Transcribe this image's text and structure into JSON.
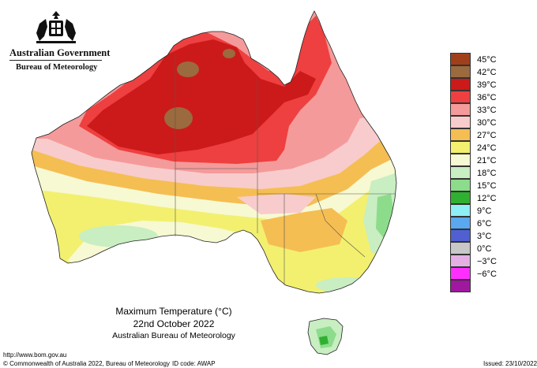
{
  "header": {
    "gov_name": "Australian Government",
    "bureau_name": "Bureau of Meteorology"
  },
  "title": {
    "line1": "Maximum Temperature (°C)",
    "line2": "22nd October 2022",
    "line3": "Australian Bureau of Meteorology"
  },
  "footer": {
    "url": "http://www.bom.gov.au",
    "copyright": "© Commonwealth of Australia 2022, Bureau of Meteorology",
    "id_code": "ID code: AWAP",
    "issued": "Issued: 23/10/2022"
  },
  "legend": [
    {
      "label": "45°C",
      "color": "#a0401a"
    },
    {
      "label": "42°C",
      "color": "#9b6a3e"
    },
    {
      "label": "39°C",
      "color": "#cc1a1a"
    },
    {
      "label": "36°C",
      "color": "#ee4040"
    },
    {
      "label": "33°C",
      "color": "#f59a9a"
    },
    {
      "label": "30°C",
      "color": "#f8cccc"
    },
    {
      "label": "27°C",
      "color": "#f5be52"
    },
    {
      "label": "24°C",
      "color": "#f3f070"
    },
    {
      "label": "21°C",
      "color": "#f7f9d2"
    },
    {
      "label": "18°C",
      "color": "#c8eec2"
    },
    {
      "label": "15°C",
      "color": "#8cdc8c"
    },
    {
      "label": "12°C",
      "color": "#30b030"
    },
    {
      "label": "9°C",
      "color": "#8ef0f4"
    },
    {
      "label": "6°C",
      "color": "#5aa8f0"
    },
    {
      "label": "3°C",
      "color": "#5060d0"
    },
    {
      "label": "0°C",
      "color": "#c8c8c8"
    },
    {
      "label": "−3°C",
      "color": "#e4b0e4"
    },
    {
      "label": "−6°C",
      "color": "#ff30ff"
    },
    {
      "label": "",
      "color": "#a018a0"
    }
  ]
}
